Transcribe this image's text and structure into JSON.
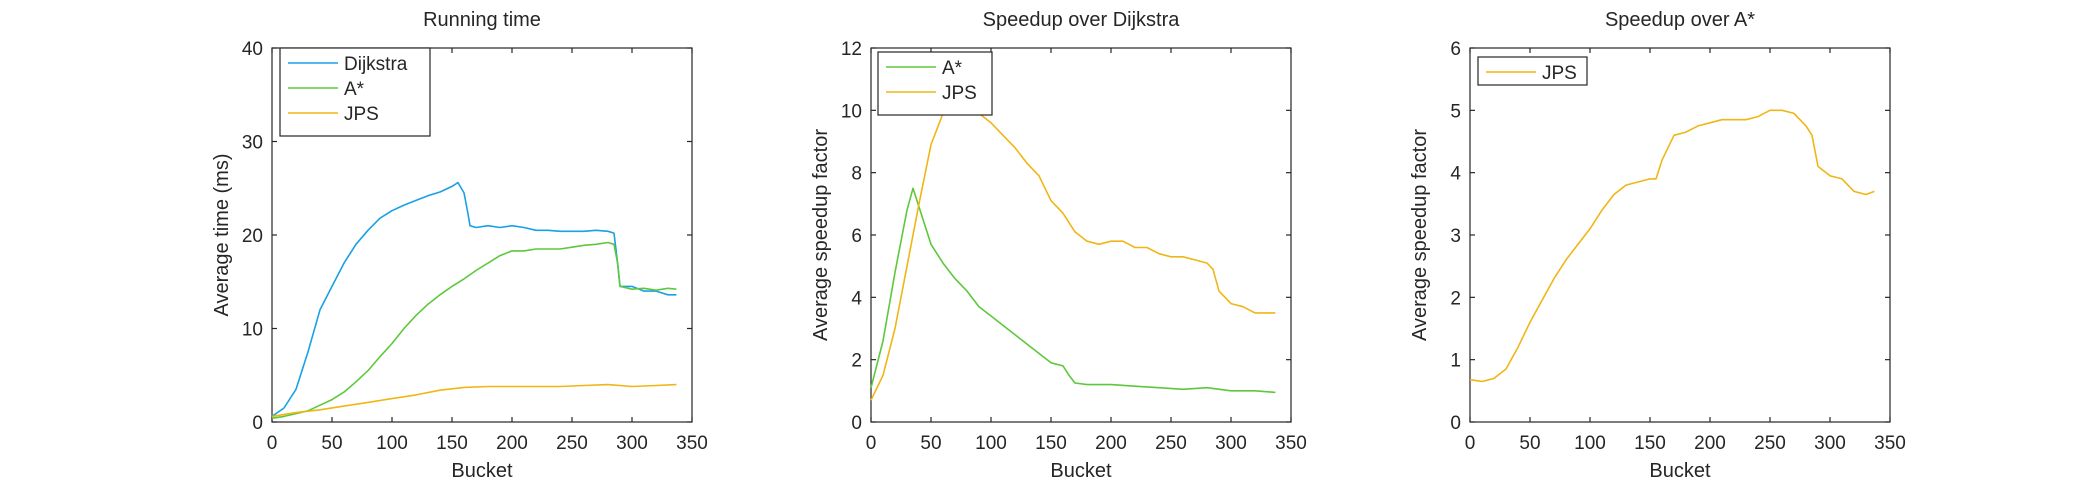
{
  "chart_data": [
    {
      "type": "line",
      "title": "Running time",
      "xlabel": "Bucket",
      "ylabel": "Average time (ms)",
      "xlim": [
        0,
        350
      ],
      "ylim": [
        0,
        40
      ],
      "xticks": [
        "0",
        "50",
        "100",
        "150",
        "200",
        "250",
        "300",
        "350"
      ],
      "yticks": [
        "0",
        "10",
        "20",
        "30",
        "40"
      ],
      "grid": false,
      "legend_position": "top-left",
      "series": [
        {
          "name": "Dijkstra",
          "color": "#1aa0e6",
          "x": [
            0,
            10,
            20,
            30,
            40,
            50,
            60,
            70,
            80,
            90,
            100,
            110,
            120,
            130,
            140,
            150,
            155,
            160,
            163,
            165,
            170,
            180,
            190,
            200,
            210,
            220,
            230,
            240,
            250,
            260,
            270,
            280,
            285,
            288,
            290,
            300,
            310,
            320,
            330,
            337
          ],
          "y": [
            0.6,
            1.5,
            3.5,
            7.5,
            12,
            14.5,
            17,
            19,
            20.5,
            21.8,
            22.6,
            23.2,
            23.7,
            24.2,
            24.6,
            25.2,
            25.6,
            24.5,
            22.5,
            21,
            20.8,
            21,
            20.8,
            21,
            20.8,
            20.5,
            20.5,
            20.4,
            20.4,
            20.4,
            20.5,
            20.4,
            20.2,
            17,
            14.5,
            14.5,
            14,
            14,
            13.6,
            13.6
          ]
        },
        {
          "name": "A*",
          "color": "#5dc83c",
          "x": [
            0,
            10,
            20,
            30,
            40,
            50,
            60,
            70,
            80,
            90,
            100,
            110,
            120,
            130,
            140,
            150,
            160,
            170,
            180,
            190,
            200,
            210,
            220,
            230,
            240,
            250,
            260,
            270,
            280,
            285,
            288,
            290,
            300,
            310,
            320,
            330,
            337
          ],
          "y": [
            0.4,
            0.6,
            0.9,
            1.2,
            1.8,
            2.4,
            3.2,
            4.3,
            5.5,
            7,
            8.4,
            10,
            11.4,
            12.6,
            13.6,
            14.5,
            15.3,
            16.2,
            17,
            17.8,
            18.3,
            18.3,
            18.5,
            18.5,
            18.5,
            18.7,
            18.9,
            19,
            19.2,
            19,
            17,
            14.5,
            14.2,
            14.3,
            14.1,
            14.3,
            14.2
          ]
        },
        {
          "name": "JPS",
          "color": "#f0b616",
          "x": [
            0,
            20,
            40,
            60,
            80,
            100,
            120,
            140,
            160,
            180,
            200,
            220,
            240,
            260,
            280,
            300,
            320,
            337
          ],
          "y": [
            0.6,
            1,
            1.3,
            1.7,
            2.1,
            2.5,
            2.9,
            3.4,
            3.7,
            3.8,
            3.8,
            3.8,
            3.8,
            3.9,
            4,
            3.8,
            3.9,
            4
          ]
        }
      ]
    },
    {
      "type": "line",
      "title": "Speedup over Dijkstra",
      "xlabel": "Bucket",
      "ylabel": "Average speedup factor",
      "xlim": [
        0,
        350
      ],
      "ylim": [
        0,
        12
      ],
      "xticks": [
        "0",
        "50",
        "100",
        "150",
        "200",
        "250",
        "300",
        "350"
      ],
      "yticks": [
        "0",
        "2",
        "4",
        "6",
        "8",
        "10",
        "12"
      ],
      "grid": false,
      "legend_position": "top-left",
      "series": [
        {
          "name": "A*",
          "color": "#5dc83c",
          "x": [
            0,
            10,
            20,
            30,
            35,
            40,
            50,
            60,
            70,
            80,
            90,
            100,
            110,
            120,
            130,
            140,
            150,
            160,
            165,
            170,
            180,
            200,
            220,
            240,
            260,
            280,
            300,
            320,
            337
          ],
          "y": [
            1.1,
            2.6,
            4.8,
            6.8,
            7.5,
            6.9,
            5.7,
            5.1,
            4.6,
            4.2,
            3.7,
            3.4,
            3.1,
            2.8,
            2.5,
            2.2,
            1.9,
            1.8,
            1.5,
            1.25,
            1.2,
            1.2,
            1.15,
            1.1,
            1.05,
            1.1,
            1,
            1,
            0.95
          ]
        },
        {
          "name": "JPS",
          "color": "#f0b616",
          "x": [
            0,
            10,
            20,
            30,
            40,
            50,
            60,
            70,
            75,
            80,
            90,
            100,
            110,
            120,
            130,
            140,
            150,
            155,
            160,
            170,
            180,
            190,
            200,
            210,
            220,
            230,
            240,
            250,
            260,
            270,
            280,
            285,
            290,
            300,
            310,
            320,
            330,
            337
          ],
          "y": [
            0.7,
            1.5,
            3,
            5,
            7,
            8.9,
            9.9,
            10.4,
            10.6,
            10.3,
            9.9,
            9.6,
            9.2,
            8.8,
            8.3,
            7.9,
            7.1,
            6.9,
            6.7,
            6.1,
            5.8,
            5.7,
            5.8,
            5.8,
            5.6,
            5.6,
            5.4,
            5.3,
            5.3,
            5.2,
            5.1,
            4.9,
            4.2,
            3.8,
            3.7,
            3.5,
            3.5,
            3.5
          ]
        }
      ]
    },
    {
      "type": "line",
      "title": "Speedup over A*",
      "xlabel": "Bucket",
      "ylabel": "Average speedup factor",
      "xlim": [
        0,
        350
      ],
      "ylim": [
        0,
        6
      ],
      "xticks": [
        "0",
        "50",
        "100",
        "150",
        "200",
        "250",
        "300",
        "350"
      ],
      "yticks": [
        "0",
        "1",
        "2",
        "3",
        "4",
        "5",
        "6"
      ],
      "grid": false,
      "legend_position": "top-left",
      "series": [
        {
          "name": "JPS",
          "color": "#f0b616",
          "x": [
            0,
            10,
            20,
            30,
            40,
            50,
            60,
            70,
            80,
            90,
            100,
            110,
            120,
            130,
            140,
            150,
            155,
            160,
            170,
            180,
            190,
            200,
            210,
            220,
            230,
            240,
            250,
            260,
            270,
            280,
            285,
            290,
            300,
            310,
            320,
            330,
            337
          ],
          "y": [
            0.68,
            0.65,
            0.7,
            0.85,
            1.2,
            1.6,
            1.95,
            2.3,
            2.6,
            2.85,
            3.1,
            3.4,
            3.65,
            3.8,
            3.85,
            3.9,
            3.9,
            4.2,
            4.6,
            4.65,
            4.75,
            4.8,
            4.85,
            4.85,
            4.85,
            4.9,
            5,
            5,
            4.95,
            4.75,
            4.6,
            4.1,
            3.95,
            3.9,
            3.7,
            3.65,
            3.7
          ]
        }
      ]
    }
  ]
}
